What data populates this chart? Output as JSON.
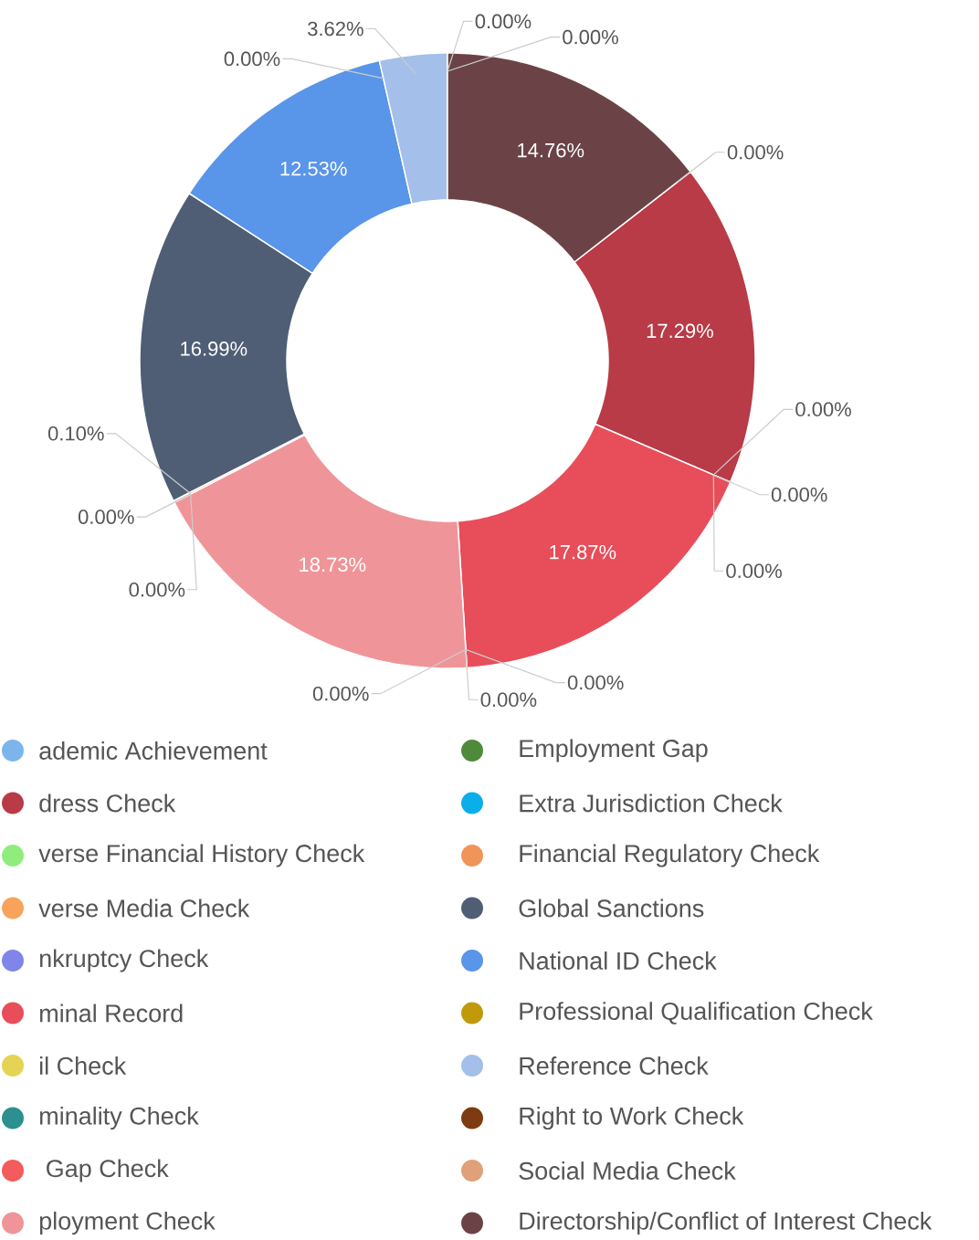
{
  "chart_data": {
    "type": "donut",
    "categories": [
      "ademic Achievement",
      "dress Check",
      "verse Financial History Check",
      "verse Media Check",
      "nkruptcy Check",
      "minal Record",
      "il Check",
      "minality Check",
      " Gap Check",
      "ployment Check",
      "Employment Gap",
      "Extra Jurisdiction Check",
      "Financial Regulatory Check",
      "Global Sanctions",
      "National ID Check",
      "Professional Qualification Check",
      "Reference Check",
      "Right to Work Check",
      "Social Media Check",
      "Directorship/Conflict of Interest Check"
    ],
    "values": [
      0,
      17.29,
      0,
      0,
      0,
      17.87,
      0,
      0,
      0,
      18.73,
      0,
      0,
      0.1,
      16.99,
      12.53,
      0,
      3.62,
      0,
      0,
      14.76
    ],
    "colors": [
      "#7cb5ec",
      "#b83b47",
      "#90ed7d",
      "#f7a35c",
      "#8085e9",
      "#e84d5a",
      "#e4d354",
      "#2b908f",
      "#f45b5b",
      "#ef9599",
      "#4e8a3a",
      "#0aaee8",
      "#f0955a",
      "#4f5e75",
      "#5995e8",
      "#c09a0a",
      "#a3bfea",
      "#7e3a10",
      "#e0a07a",
      "#6b4347"
    ],
    "value_labels": [
      "0.00%",
      "17.29%",
      "0.00%",
      "0.00%",
      "0.00%",
      "17.87%",
      "0.00%",
      "0.00%",
      "0.00%",
      "18.73%",
      "0.00%",
      "0.00%",
      "0.10%",
      "16.99%",
      "12.53%",
      "0.00%",
      "3.62%",
      "0.00%",
      "0.00%",
      "14.76%"
    ],
    "legend": "bottom"
  }
}
